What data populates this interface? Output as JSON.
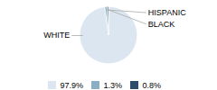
{
  "chart_data": {
    "type": "pie",
    "categories": [
      "WHITE",
      "HISPANIC",
      "BLACK"
    ],
    "values": [
      97.9,
      1.3,
      0.8
    ],
    "value_labels": [
      "97.9%",
      "1.3%",
      "0.8%"
    ],
    "colors": [
      "#dce6f0",
      "#8aafc4",
      "#2e4d6b"
    ],
    "legend": "bottom"
  }
}
